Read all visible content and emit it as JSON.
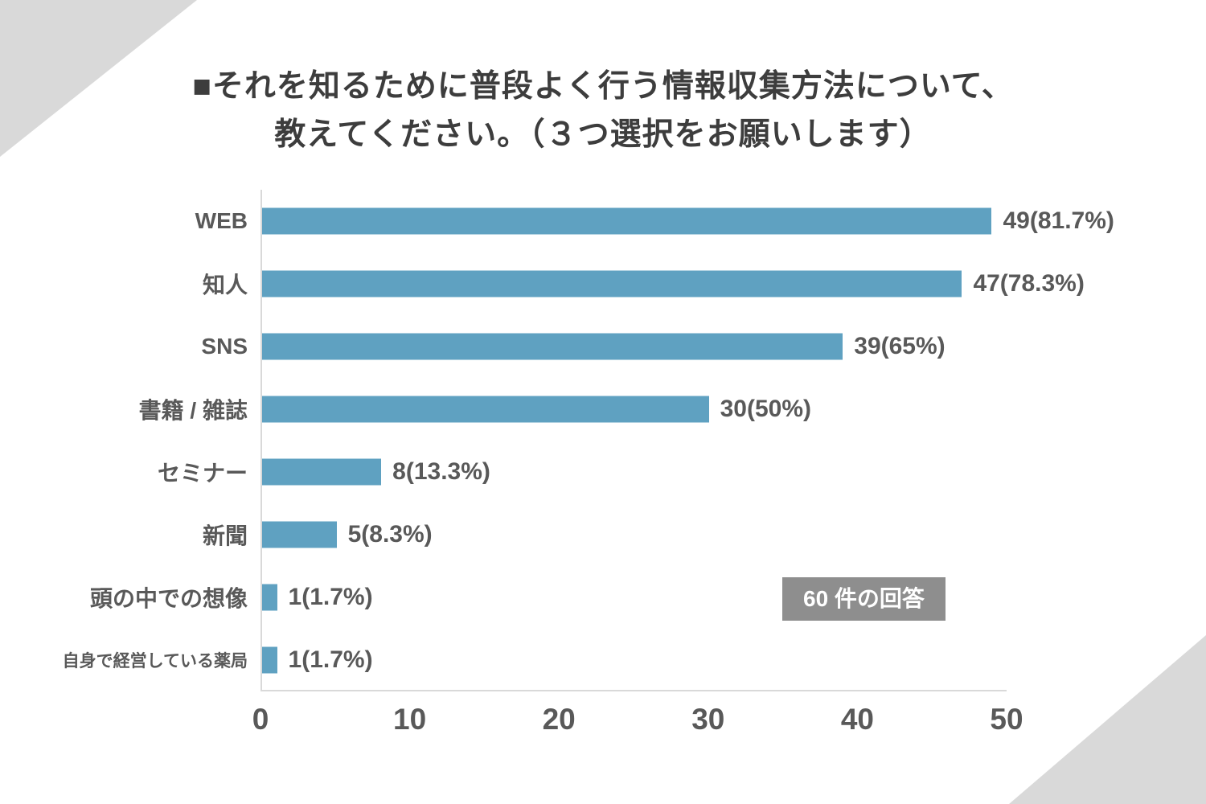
{
  "title": {
    "line1": "■それを知るために普段よく行う情報収集方法について、",
    "line2": "教えてください。（３つ選択をお願いします）"
  },
  "badge": {
    "text": "60 件の回答"
  },
  "colors": {
    "bar": "#5fa1c1",
    "text": "#595959",
    "title_text": "#3d3d3d",
    "badge_bg": "#8e8e8e",
    "badge_text": "#ffffff",
    "corner": "#d9d9d9",
    "axis_line": "#d9d9d9"
  },
  "chart_data": {
    "type": "bar",
    "orientation": "horizontal",
    "title": "■それを知るために普段よく行う情報収集方法について、教えてください。（３つ選択をお願いします）",
    "categories": [
      "WEB",
      "知人",
      "SNS",
      "書籍 / 雑誌",
      "セミナー",
      "新聞",
      "頭の中での想像",
      "自身で経営している薬局"
    ],
    "values": [
      49,
      47,
      39,
      30,
      8,
      5,
      1,
      1
    ],
    "value_labels": [
      "49(81.7%)",
      "47(78.3%)",
      "39(65%)",
      "30(50%)",
      "8(13.3%)",
      "5(8.3%)",
      "1(1.7%)",
      "1(1.7%)"
    ],
    "x_ticks": [
      "0",
      "10",
      "20",
      "30",
      "40",
      "50"
    ],
    "xlim": [
      0,
      50
    ],
    "grid": "off",
    "legend": "none",
    "annotation": "60 件の回答"
  }
}
